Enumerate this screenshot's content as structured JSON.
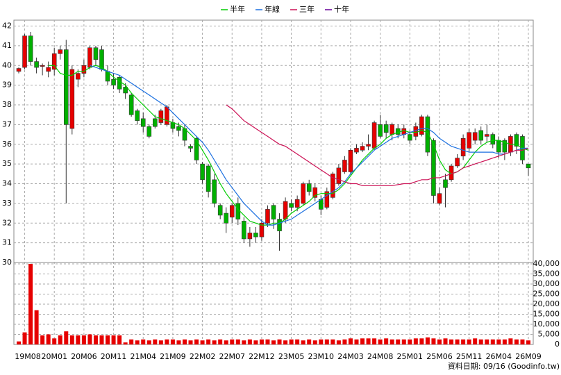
{
  "chart_data": {
    "type": "candlestick",
    "note": "資料日期: 09/16 (Goodinfo.tw)",
    "categories": [
      null,
      "19M08",
      null,
      null,
      null,
      null,
      "20M01",
      null,
      null,
      null,
      null,
      "20M06",
      null,
      null,
      null,
      null,
      "20M11",
      null,
      null,
      null,
      null,
      "21M04",
      null,
      null,
      null,
      null,
      "21M09",
      null,
      null,
      null,
      null,
      "22M02",
      null,
      null,
      null,
      null,
      "22M07",
      null,
      null,
      null,
      null,
      "22M12",
      null,
      null,
      null,
      null,
      "23M05",
      null,
      null,
      null,
      null,
      "23M10",
      null,
      null,
      null,
      null,
      "24M03",
      null,
      null,
      null,
      null,
      "24M08",
      null,
      null,
      null,
      null,
      "25M01",
      null,
      null,
      null,
      null,
      "25M06",
      null,
      null,
      null,
      null,
      "25M11",
      null,
      null,
      null,
      null,
      "26M04",
      null,
      null,
      null,
      null,
      "26M09"
    ],
    "open": [
      39.7,
      39.9,
      41.5,
      40.2,
      39.95,
      39.7,
      39.8,
      40.6,
      40.8,
      36.8,
      39.3,
      39.6,
      39.9,
      40.9,
      40.8,
      39.7,
      39.3,
      39.4,
      38.9,
      38.5,
      37.7,
      37.3,
      36.9,
      37.3,
      37.1,
      37.0,
      37.1,
      36.9,
      36.8,
      35.9,
      36.3,
      35.0,
      34.9,
      34.2,
      32.9,
      32.5,
      32.3,
      33.0,
      32.1,
      31.2,
      31.5,
      31.3,
      32.0,
      32.9,
      32.2,
      32.2,
      33.0,
      32.8,
      33.0,
      34.0,
      33.3,
      33.2,
      32.8,
      33.3,
      34.0,
      34.6,
      34.6,
      35.6,
      35.7,
      35.9,
      35.8,
      37.0,
      37.0,
      36.5,
      36.8,
      36.5,
      36.5,
      36.4,
      36.5,
      37.4,
      36.2,
      33.0,
      34.2,
      34.2,
      34.9,
      35.4,
      35.8,
      36.2,
      36.7,
      36.4,
      36.5,
      36.2,
      36.2,
      35.6,
      36.5,
      36.4,
      35.0
    ],
    "high": [
      39.9,
      41.6,
      41.7,
      40.4,
      40.1,
      40.2,
      40.9,
      41.0,
      41.3,
      40.0,
      39.8,
      40.3,
      41.0,
      41.0,
      41.0,
      40.0,
      39.6,
      39.5,
      39.1,
      38.6,
      37.8,
      37.6,
      37.0,
      37.5,
      37.8,
      38.0,
      37.3,
      37.1,
      37.0,
      36.0,
      36.4,
      35.1,
      35.0,
      34.5,
      33.0,
      32.8,
      33.0,
      33.3,
      32.3,
      31.8,
      31.8,
      32.2,
      32.9,
      33.0,
      32.5,
      33.3,
      33.2,
      33.4,
      34.1,
      34.2,
      34.0,
      33.4,
      33.8,
      34.6,
      35.0,
      35.4,
      35.8,
      36.0,
      36.1,
      36.5,
      37.2,
      37.5,
      37.2,
      37.1,
      37.0,
      37.0,
      36.7,
      37.1,
      37.5,
      37.5,
      36.3,
      33.8,
      34.5,
      35.0,
      35.5,
      36.5,
      36.8,
      36.8,
      36.9,
      37.0,
      36.6,
      36.4,
      36.3,
      36.5,
      36.6,
      36.5,
      35.0
    ],
    "low": [
      39.6,
      39.8,
      40.0,
      39.6,
      39.5,
      39.4,
      39.5,
      40.3,
      33.0,
      36.5,
      38.9,
      39.4,
      39.8,
      40.0,
      39.7,
      39.0,
      38.8,
      38.6,
      38.3,
      37.4,
      37.0,
      36.6,
      36.3,
      36.8,
      37.0,
      36.9,
      36.6,
      36.4,
      35.9,
      35.6,
      35.0,
      34.0,
      33.3,
      32.8,
      32.2,
      31.5,
      32.0,
      31.9,
      31.0,
      30.8,
      31.0,
      31.1,
      31.8,
      31.7,
      30.6,
      32.0,
      32.6,
      32.6,
      32.9,
      33.4,
      33.1,
      32.4,
      32.7,
      33.2,
      33.9,
      34.5,
      34.5,
      35.5,
      35.6,
      35.7,
      35.7,
      36.3,
      36.3,
      36.2,
      36.3,
      36.3,
      36.0,
      36.2,
      36.4,
      35.4,
      33.0,
      32.9,
      32.8,
      34.1,
      34.8,
      35.2,
      35.6,
      36.0,
      36.0,
      36.1,
      35.8,
      35.3,
      35.2,
      35.4,
      35.5,
      35.0,
      34.4
    ],
    "close": [
      39.85,
      41.5,
      40.2,
      39.9,
      40.0,
      39.9,
      40.6,
      40.8,
      37.0,
      39.8,
      39.6,
      40.0,
      40.9,
      40.3,
      39.8,
      39.2,
      39.0,
      38.8,
      38.6,
      37.5,
      37.2,
      36.9,
      36.4,
      36.9,
      37.7,
      37.9,
      36.8,
      36.7,
      36.2,
      35.8,
      35.2,
      34.2,
      33.6,
      33.0,
      32.4,
      32.0,
      32.9,
      32.2,
      31.2,
      31.5,
      31.3,
      32.0,
      32.7,
      32.2,
      31.6,
      33.1,
      32.8,
      33.2,
      34.0,
      33.6,
      33.8,
      32.7,
      33.6,
      34.5,
      34.8,
      35.2,
      35.7,
      35.8,
      35.9,
      36.0,
      37.1,
      36.4,
      36.6,
      37.0,
      36.5,
      36.8,
      36.2,
      36.9,
      37.4,
      35.6,
      33.4,
      33.5,
      33.8,
      34.9,
      35.3,
      36.3,
      36.6,
      36.6,
      36.2,
      36.5,
      36.0,
      35.6,
      35.6,
      36.4,
      35.9,
      35.2,
      34.8
    ],
    "up_color": "#e60000",
    "down_color": "#00b000",
    "series": [
      {
        "name": "半年",
        "color": "#00cc00",
        "values": [
          null,
          null,
          null,
          null,
          null,
          40.0,
          40.0,
          39.6,
          39.5,
          39.5,
          39.7,
          39.7,
          39.9,
          40.0,
          39.9,
          39.7,
          39.4,
          39.2,
          39.0,
          38.6,
          38.3,
          38.0,
          37.7,
          37.4,
          37.3,
          37.2,
          37.1,
          37.0,
          36.8,
          36.5,
          36.2,
          35.7,
          35.2,
          34.6,
          34.0,
          33.5,
          33.1,
          32.7,
          32.4,
          32.1,
          32.0,
          31.9,
          31.9,
          32.0,
          32.0,
          32.2,
          32.5,
          32.7,
          32.9,
          33.1,
          33.4,
          33.5,
          33.5,
          33.5,
          33.7,
          34.0,
          34.4,
          34.8,
          35.2,
          35.5,
          35.8,
          36.0,
          36.3,
          36.5,
          36.6,
          36.7,
          36.6,
          36.6,
          36.7,
          36.6,
          36.0,
          35.2,
          34.7,
          34.5,
          34.6,
          34.8,
          35.2,
          35.6,
          35.9,
          36.1,
          36.2,
          36.2,
          36.1,
          36.0,
          36.0,
          35.8,
          35.7
        ]
      },
      {
        "name": "年線",
        "color": "#1a6fe0",
        "values": [
          null,
          null,
          null,
          null,
          null,
          null,
          null,
          null,
          null,
          null,
          null,
          null,
          40.0,
          39.9,
          39.8,
          39.7,
          39.6,
          39.5,
          39.3,
          39.1,
          38.9,
          38.7,
          38.5,
          38.3,
          38.1,
          37.9,
          37.6,
          37.3,
          37.0,
          36.7,
          36.4,
          36.1,
          35.7,
          35.2,
          34.7,
          34.2,
          33.8,
          33.4,
          33.0,
          32.7,
          32.4,
          32.1,
          31.9,
          31.9,
          32.0,
          32.1,
          32.2,
          32.4,
          32.6,
          32.8,
          33.0,
          33.2,
          33.4,
          33.6,
          33.8,
          34.1,
          34.5,
          34.8,
          35.1,
          35.4,
          35.7,
          35.9,
          36.1,
          36.3,
          36.4,
          36.5,
          36.6,
          36.7,
          36.8,
          36.8,
          36.6,
          36.3,
          36.1,
          35.9,
          35.8,
          35.7,
          35.6,
          35.6,
          35.6,
          35.6,
          35.6,
          35.5,
          35.5,
          35.6,
          35.7,
          35.8,
          35.8
        ]
      },
      {
        "name": "三年",
        "color": "#cc1155",
        "values": [
          null,
          null,
          null,
          null,
          null,
          null,
          null,
          null,
          null,
          null,
          null,
          null,
          null,
          null,
          null,
          null,
          null,
          null,
          null,
          null,
          null,
          null,
          null,
          null,
          null,
          null,
          null,
          null,
          null,
          null,
          null,
          null,
          null,
          null,
          null,
          38.0,
          37.8,
          37.5,
          37.2,
          37.0,
          36.8,
          36.6,
          36.4,
          36.2,
          36.0,
          35.9,
          35.7,
          35.5,
          35.3,
          35.1,
          34.9,
          34.7,
          34.5,
          34.3,
          34.2,
          34.1,
          34.0,
          34.0,
          33.9,
          33.9,
          33.9,
          33.9,
          33.9,
          33.9,
          33.95,
          34.0,
          34.0,
          34.1,
          34.2,
          34.2,
          34.3,
          34.3,
          34.4,
          34.5,
          34.6,
          34.8,
          34.9,
          35.0,
          35.1,
          35.2,
          35.3,
          35.4,
          35.5,
          35.6,
          35.7,
          35.7,
          35.8
        ]
      },
      {
        "name": "十年",
        "color": "#660099",
        "values": [
          null,
          null,
          null,
          null,
          null,
          null,
          null,
          null,
          null,
          null,
          null,
          null,
          null,
          null,
          null,
          null,
          null,
          null,
          null,
          null,
          null,
          null,
          null,
          null,
          null,
          null,
          null,
          null,
          null,
          null,
          null,
          null,
          null,
          null,
          null,
          null,
          null,
          null,
          null,
          null,
          null,
          null,
          null,
          null,
          null,
          null,
          null,
          null,
          null,
          null,
          null,
          null,
          null,
          null,
          null,
          null,
          null,
          null,
          null,
          null,
          null,
          null,
          null,
          null,
          null,
          null,
          null,
          null,
          null,
          null,
          null,
          null,
          null,
          null,
          null,
          null,
          null,
          null,
          null,
          null,
          null,
          null,
          null,
          null,
          null,
          null,
          null
        ]
      }
    ],
    "ylim": [
      30,
      42.3
    ],
    "yticks": [
      30,
      31,
      32,
      33,
      34,
      35,
      36,
      37,
      38,
      39,
      40,
      41,
      42
    ],
    "grid": true,
    "volume": {
      "color": "#e60000",
      "values": [
        1500,
        6000,
        40000,
        17000,
        4500,
        5000,
        3000,
        4500,
        6500,
        4500,
        4500,
        4500,
        5000,
        4500,
        4500,
        4500,
        4500,
        4500,
        1000,
        2500,
        2000,
        2500,
        2000,
        2500,
        2000,
        2500,
        2500,
        2000,
        2500,
        2000,
        2500,
        2000,
        2500,
        2000,
        2500,
        2000,
        2500,
        2500,
        2000,
        2500,
        2000,
        2500,
        2500,
        2000,
        2500,
        2000,
        2500,
        2500,
        2000,
        2500,
        2000,
        2500,
        2500,
        2500,
        2000,
        2500,
        3000,
        2500,
        3000,
        3000,
        3000,
        2500,
        3000,
        2500,
        2500,
        2500,
        2500,
        3000,
        3000,
        3500,
        3000,
        2500,
        3000,
        2500,
        2500,
        2500,
        2500,
        3000,
        2500,
        2500,
        2500,
        2500,
        2500,
        3000,
        2500,
        2500,
        2000
      ],
      "ylim": [
        0,
        40700
      ],
      "yticks": [
        0,
        {
          "value": 5000,
          "label": "5,000"
        },
        {
          "value": 10000,
          "label": "10,000"
        },
        {
          "value": 15000,
          "label": "15,000"
        },
        {
          "value": 20000,
          "label": "20,000"
        },
        {
          "value": 25000,
          "label": "25,000"
        },
        {
          "value": 30000,
          "label": "30,000"
        },
        {
          "value": 35000,
          "label": "35,000"
        },
        {
          "value": 40000,
          "label": "40,000"
        }
      ]
    }
  }
}
